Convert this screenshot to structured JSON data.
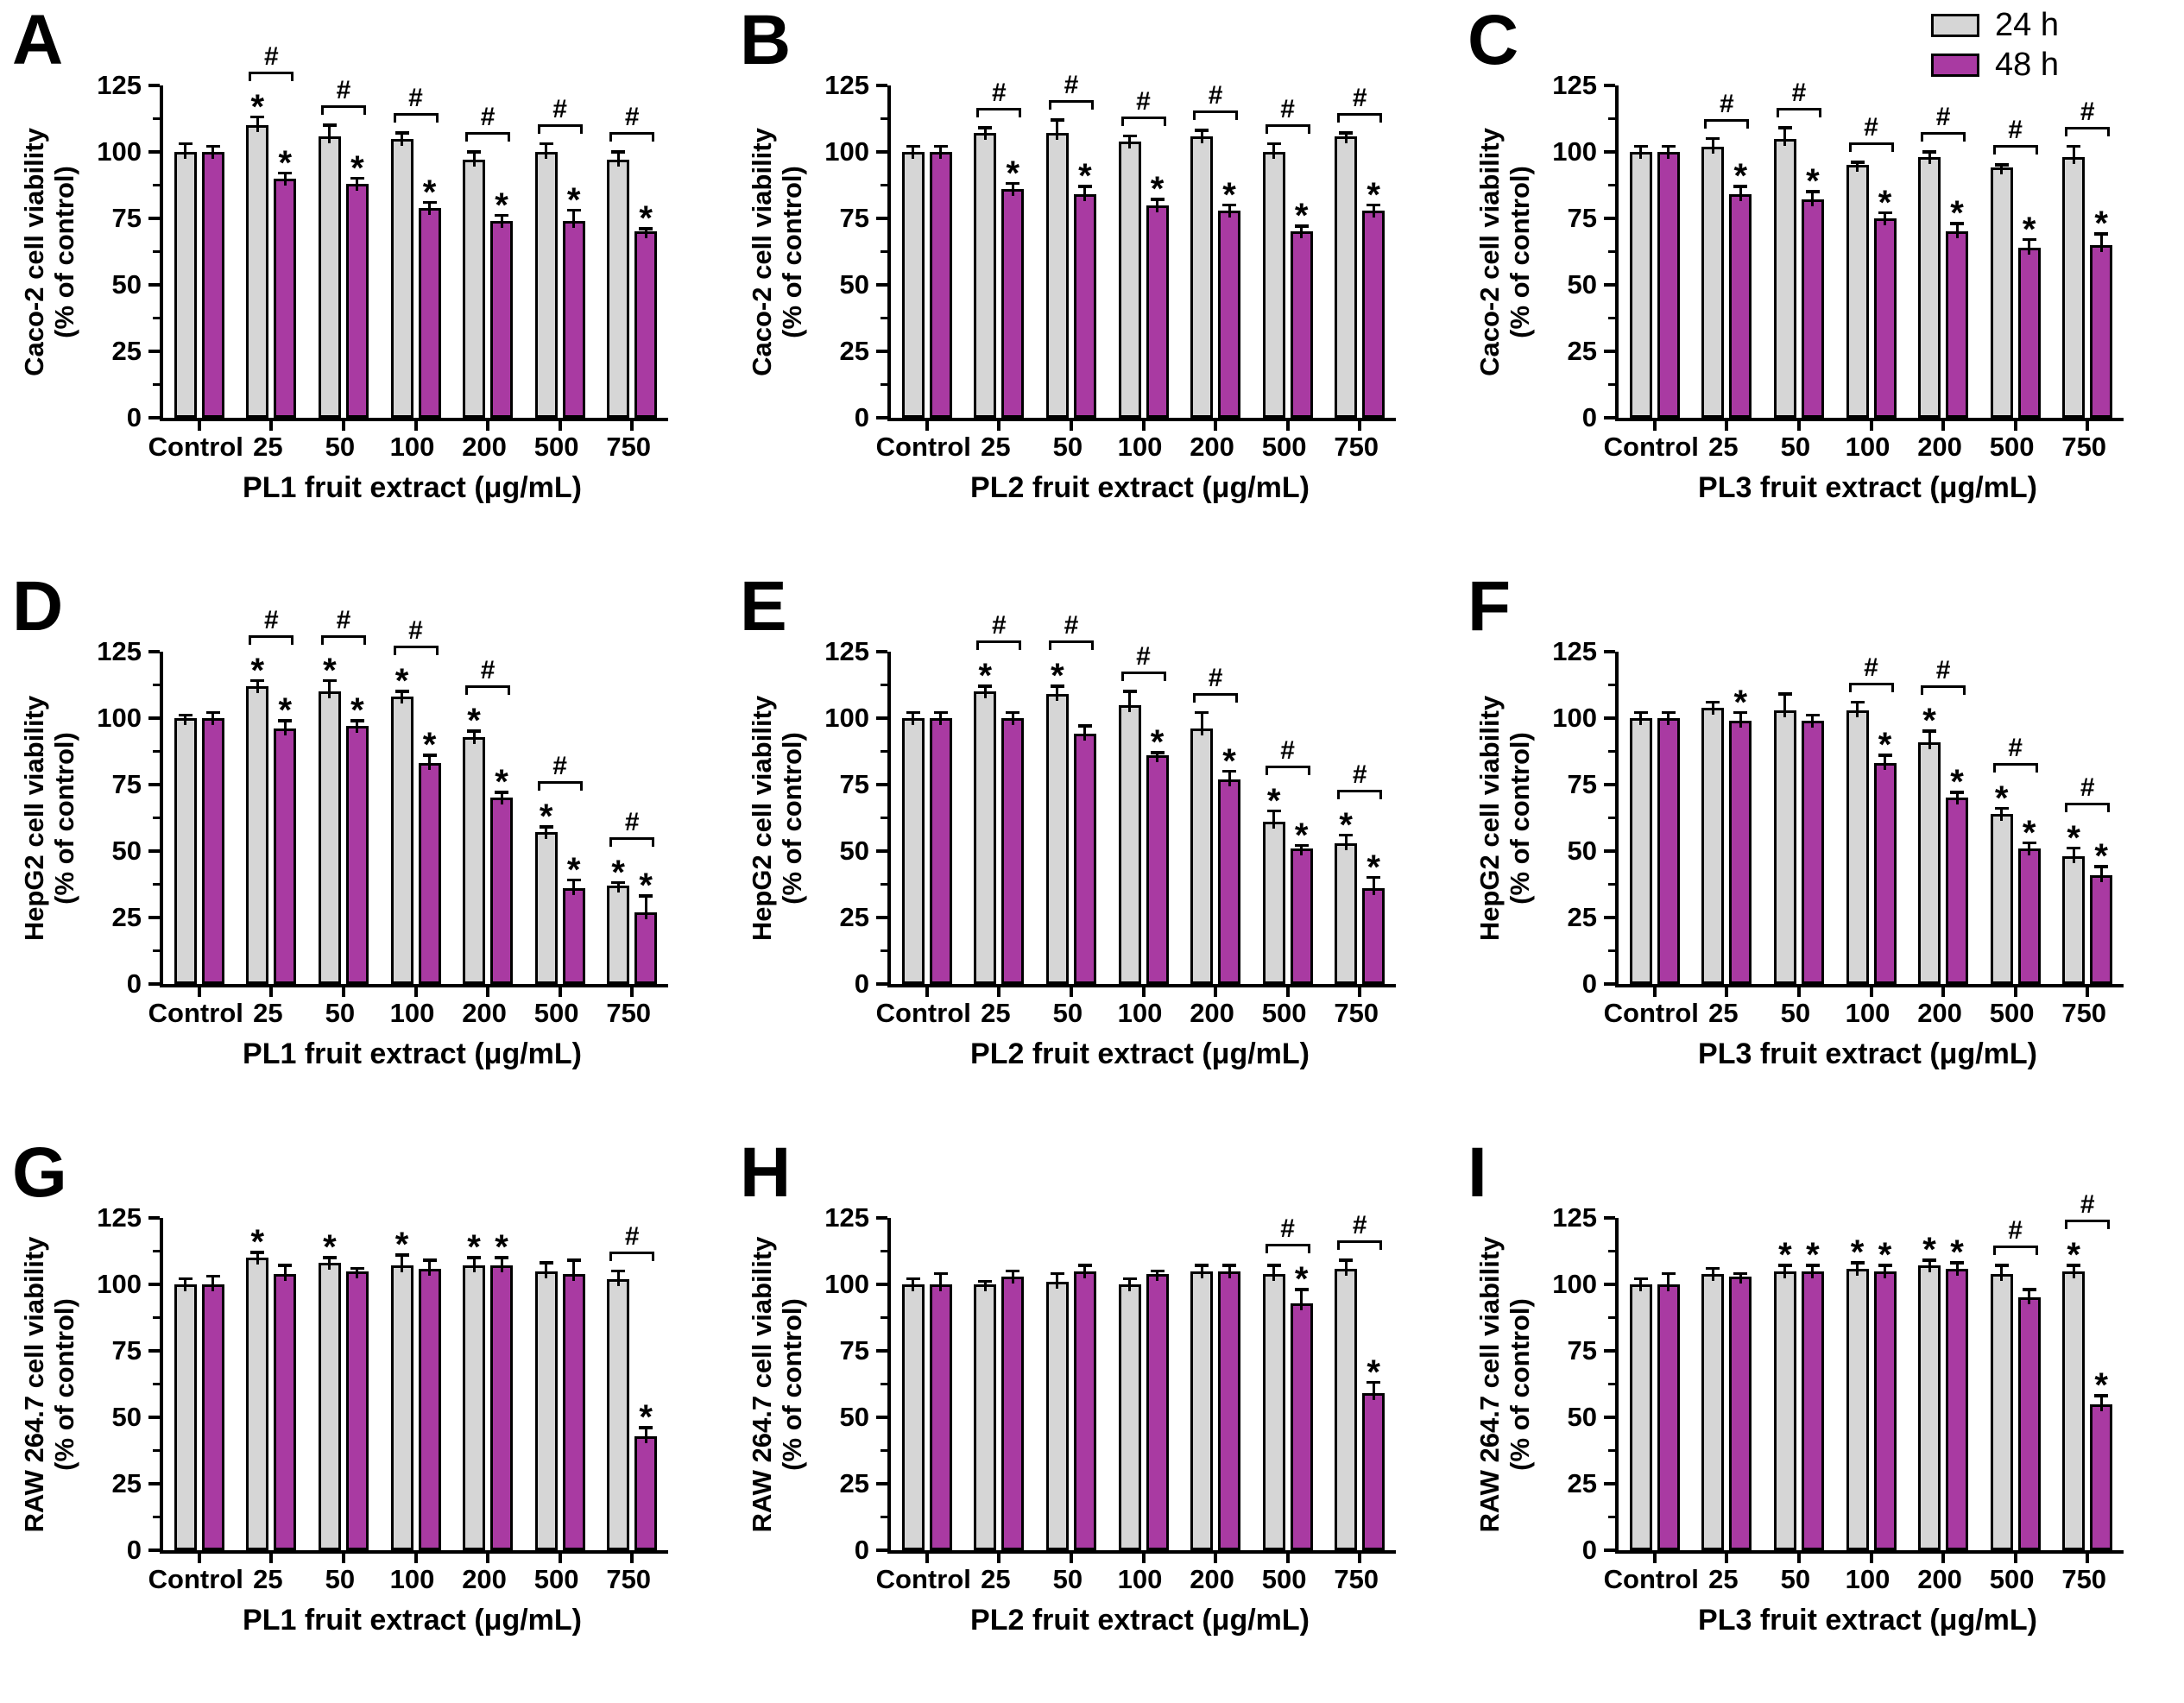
{
  "legend": {
    "items": [
      {
        "label": "24 h",
        "color": "#d6d6d6"
      },
      {
        "label": "48 h",
        "color": "#a93aa2"
      }
    ]
  },
  "axis": {
    "yticks": [
      "0",
      "25",
      "50",
      "75",
      "100",
      "125"
    ],
    "ylim": [
      0,
      125
    ],
    "yminor": [
      12.5,
      37.5,
      62.5,
      87.5,
      112.5
    ]
  },
  "annotations": {
    "star": "*",
    "hash": "#"
  },
  "chart_data": [
    {
      "type": "bar",
      "panel": "A",
      "ylabel": "Caco-2 cell viability",
      "ylabel2": "(% of control)",
      "xlabel": "PL1 fruit extract (μg/mL)",
      "categories": [
        "Control",
        "25",
        "50",
        "100",
        "200",
        "500",
        "750"
      ],
      "series": [
        {
          "name": "24 h",
          "values": [
            100,
            110,
            106,
            105,
            97,
            100,
            97
          ],
          "errors": [
            3,
            3,
            4,
            2,
            3,
            3,
            3
          ],
          "stars": [
            false,
            true,
            false,
            false,
            false,
            false,
            false
          ]
        },
        {
          "name": "48 h",
          "values": [
            100,
            90,
            88,
            79,
            74,
            74,
            70
          ],
          "errors": [
            2,
            2,
            2,
            2,
            2,
            4,
            1
          ],
          "stars": [
            false,
            true,
            true,
            true,
            true,
            true,
            true
          ]
        }
      ],
      "hash_pairs": [
        false,
        true,
        true,
        true,
        true,
        true,
        true
      ]
    },
    {
      "type": "bar",
      "panel": "B",
      "ylabel": "Caco-2 cell viability",
      "ylabel2": "(% of control)",
      "xlabel": "PL2 fruit extract (μg/mL)",
      "categories": [
        "Control",
        "25",
        "50",
        "100",
        "200",
        "500",
        "750"
      ],
      "series": [
        {
          "name": "24 h",
          "values": [
            100,
            107,
            107,
            104,
            106,
            100,
            106
          ],
          "errors": [
            2,
            2,
            5,
            2,
            2,
            3,
            1
          ],
          "stars": [
            false,
            false,
            false,
            false,
            false,
            false,
            false
          ]
        },
        {
          "name": "48 h",
          "values": [
            100,
            86,
            84,
            80,
            78,
            70,
            78
          ],
          "errors": [
            2,
            2,
            3,
            2,
            2,
            2,
            2
          ],
          "stars": [
            false,
            true,
            true,
            true,
            true,
            true,
            true
          ]
        }
      ],
      "hash_pairs": [
        false,
        true,
        true,
        true,
        true,
        true,
        true
      ]
    },
    {
      "type": "bar",
      "panel": "C",
      "ylabel": "Caco-2 cell viability",
      "ylabel2": "(% of control)",
      "xlabel": "PL3 fruit extract (μg/mL)",
      "categories": [
        "Control",
        "25",
        "50",
        "100",
        "200",
        "500",
        "750"
      ],
      "series": [
        {
          "name": "24 h",
          "values": [
            100,
            102,
            105,
            95,
            98,
            94,
            98
          ],
          "errors": [
            2,
            3,
            4,
            1,
            2,
            1,
            4
          ],
          "stars": [
            false,
            false,
            false,
            false,
            false,
            false,
            false
          ]
        },
        {
          "name": "48 h",
          "values": [
            100,
            84,
            82,
            75,
            70,
            64,
            65
          ],
          "errors": [
            2,
            3,
            3,
            2,
            3,
            3,
            4
          ],
          "stars": [
            false,
            true,
            true,
            true,
            true,
            true,
            true
          ]
        }
      ],
      "hash_pairs": [
        false,
        true,
        true,
        true,
        true,
        true,
        true
      ]
    },
    {
      "type": "bar",
      "panel": "D",
      "ylabel": "HepG2 cell viability",
      "ylabel2": "(% of control)",
      "xlabel": "PL1 fruit extract (μg/mL)",
      "categories": [
        "Control",
        "25",
        "50",
        "100",
        "200",
        "500",
        "750"
      ],
      "series": [
        {
          "name": "24 h",
          "values": [
            100,
            112,
            110,
            108,
            93,
            57,
            37
          ],
          "errors": [
            1,
            2,
            4,
            2,
            2,
            2,
            1
          ],
          "stars": [
            false,
            true,
            true,
            true,
            true,
            true,
            true
          ]
        },
        {
          "name": "48 h",
          "values": [
            100,
            96,
            97,
            83,
            70,
            36,
            27
          ],
          "errors": [
            2,
            3,
            2,
            3,
            2,
            3,
            6
          ],
          "stars": [
            false,
            true,
            true,
            true,
            true,
            true,
            true
          ]
        }
      ],
      "hash_pairs": [
        false,
        true,
        true,
        true,
        true,
        true,
        true
      ]
    },
    {
      "type": "bar",
      "panel": "E",
      "ylabel": "HepG2 cell viability",
      "ylabel2": "(% of control)",
      "xlabel": "PL2 fruit extract (μg/mL)",
      "categories": [
        "Control",
        "25",
        "50",
        "100",
        "200",
        "500",
        "750"
      ],
      "series": [
        {
          "name": "24 h",
          "values": [
            100,
            110,
            109,
            105,
            96,
            61,
            53
          ],
          "errors": [
            2,
            2,
            3,
            5,
            6,
            4,
            3
          ],
          "stars": [
            false,
            true,
            true,
            false,
            false,
            true,
            true
          ]
        },
        {
          "name": "48 h",
          "values": [
            100,
            100,
            94,
            86,
            77,
            51,
            36
          ],
          "errors": [
            2,
            2,
            3,
            1,
            3,
            1,
            4
          ],
          "stars": [
            false,
            false,
            false,
            true,
            true,
            true,
            true
          ]
        }
      ],
      "hash_pairs": [
        false,
        true,
        true,
        true,
        true,
        true,
        true
      ]
    },
    {
      "type": "bar",
      "panel": "F",
      "ylabel": "HepG2 cell viability",
      "ylabel2": "(% of control)",
      "xlabel": "PL3 fruit extract (μg/mL)",
      "categories": [
        "Control",
        "25",
        "50",
        "100",
        "200",
        "500",
        "750"
      ],
      "series": [
        {
          "name": "24 h",
          "values": [
            100,
            104,
            103,
            103,
            91,
            64,
            48
          ],
          "errors": [
            2,
            2,
            6,
            3,
            4,
            2,
            3
          ],
          "stars": [
            false,
            false,
            false,
            false,
            true,
            true,
            true
          ]
        },
        {
          "name": "48 h",
          "values": [
            100,
            99,
            99,
            83,
            70,
            51,
            41
          ],
          "errors": [
            2,
            3,
            2,
            3,
            2,
            2,
            3
          ],
          "stars": [
            false,
            true,
            false,
            true,
            true,
            true,
            true
          ]
        }
      ],
      "hash_pairs": [
        false,
        false,
        false,
        true,
        true,
        true,
        true
      ]
    },
    {
      "type": "bar",
      "panel": "G",
      "ylabel": "RAW 264.7 cell viability",
      "ylabel2": "(% of control)",
      "xlabel": "PL1 fruit extract (μg/mL)",
      "categories": [
        "Control",
        "25",
        "50",
        "100",
        "200",
        "500",
        "750"
      ],
      "series": [
        {
          "name": "24 h",
          "values": [
            100,
            110,
            108,
            107,
            107,
            105,
            102
          ],
          "errors": [
            2,
            2,
            2,
            4,
            3,
            3,
            3
          ],
          "stars": [
            false,
            true,
            true,
            true,
            true,
            false,
            false
          ]
        },
        {
          "name": "48 h",
          "values": [
            100,
            104,
            105,
            106,
            107,
            104,
            43
          ],
          "errors": [
            3,
            3,
            1,
            3,
            3,
            5,
            3
          ],
          "stars": [
            false,
            false,
            false,
            false,
            true,
            false,
            true
          ]
        }
      ],
      "hash_pairs": [
        false,
        false,
        false,
        false,
        false,
        false,
        true
      ]
    },
    {
      "type": "bar",
      "panel": "H",
      "ylabel": "RAW 264.7 cell viability",
      "ylabel2": "(% of control)",
      "xlabel": "PL2 fruit extract (μg/mL)",
      "categories": [
        "Control",
        "25",
        "50",
        "100",
        "200",
        "500",
        "750"
      ],
      "series": [
        {
          "name": "24 h",
          "values": [
            100,
            100,
            101,
            100,
            105,
            104,
            106
          ],
          "errors": [
            2,
            1,
            3,
            2,
            2,
            3,
            3
          ],
          "stars": [
            false,
            false,
            false,
            false,
            false,
            false,
            false
          ]
        },
        {
          "name": "48 h",
          "values": [
            100,
            103,
            105,
            104,
            105,
            93,
            59
          ],
          "errors": [
            4,
            2,
            2,
            1,
            2,
            5,
            4
          ],
          "stars": [
            false,
            false,
            false,
            false,
            false,
            true,
            true
          ]
        }
      ],
      "hash_pairs": [
        false,
        false,
        false,
        false,
        false,
        true,
        true
      ]
    },
    {
      "type": "bar",
      "panel": "I",
      "ylabel": "RAW 264.7 cell viability",
      "ylabel2": "(% of control)",
      "xlabel": "PL3 fruit extract (μg/mL)",
      "categories": [
        "Control",
        "25",
        "50",
        "100",
        "200",
        "500",
        "750"
      ],
      "series": [
        {
          "name": "24 h",
          "values": [
            100,
            104,
            105,
            106,
            107,
            104,
            105
          ],
          "errors": [
            2,
            2,
            2,
            2,
            2,
            3,
            2
          ],
          "stars": [
            false,
            false,
            true,
            true,
            true,
            false,
            true
          ]
        },
        {
          "name": "48 h",
          "values": [
            100,
            103,
            105,
            105,
            106,
            95,
            55
          ],
          "errors": [
            4,
            1,
            2,
            2,
            2,
            3,
            3
          ],
          "stars": [
            false,
            false,
            true,
            true,
            true,
            false,
            true
          ]
        }
      ],
      "hash_pairs": [
        false,
        false,
        false,
        false,
        false,
        true,
        true
      ]
    }
  ]
}
